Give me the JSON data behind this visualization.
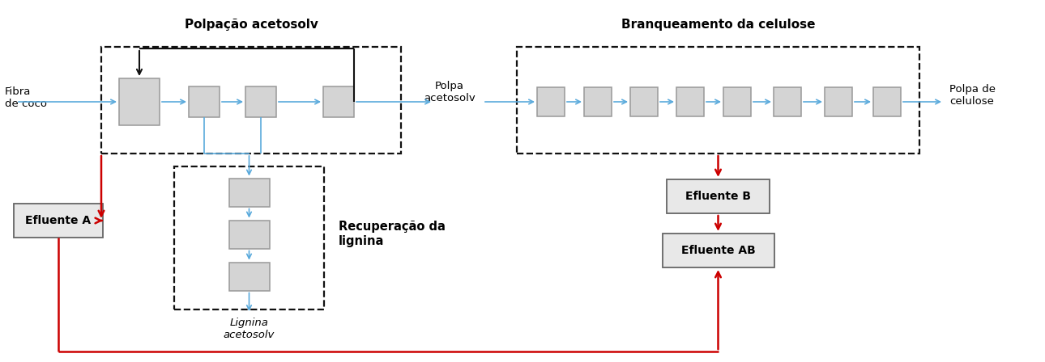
{
  "fig_width": 12.9,
  "fig_height": 4.48,
  "bg_color": "#ffffff",
  "box_fill": "#d4d4d4",
  "box_edge": "#999999",
  "eff_fill": "#e8e8e8",
  "eff_edge": "#666666",
  "blue": "#5aaadc",
  "red": "#cc0000",
  "black": "#111111",
  "title_polp": "Polpação acetosolv",
  "title_branch": "Branqueamento da celulose",
  "lbl_fibra": "Fibra\nde coco",
  "lbl_polpa_ac": "Polpa\nacetosolv",
  "lbl_polpa_cel": "Polpa de\ncelulose",
  "lbl_eff_a": "Efluente A",
  "lbl_eff_b": "Efluente B",
  "lbl_eff_ab": "Efluente AB",
  "lbl_lignina": "Lignina\nacetosolv",
  "lbl_recuperacao": "Recuperação da\nlignina"
}
